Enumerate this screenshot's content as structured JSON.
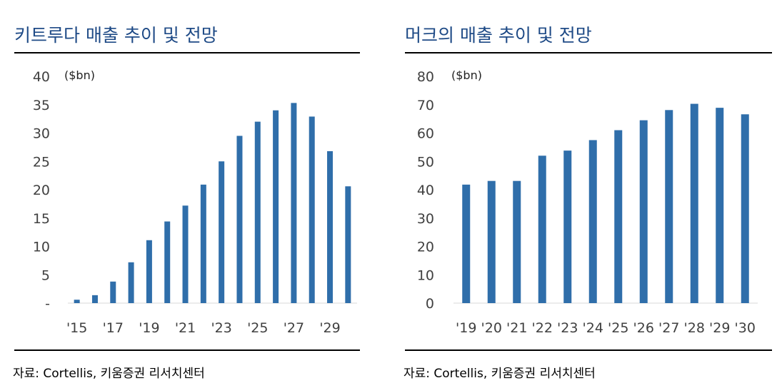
{
  "colors": {
    "bar": "#2f6eaa",
    "title": "#1e4a86",
    "axis_text": "#404040",
    "rule": "#000000"
  },
  "chart_data": [
    {
      "type": "bar",
      "title": "키트루다 매출 추이 및 전망",
      "unit_label": "($bn)",
      "ylim": [
        0,
        40
      ],
      "y_ticks": [
        "-",
        "5",
        "10",
        "15",
        "20",
        "25",
        "30",
        "35",
        "40"
      ],
      "categories": [
        "2015",
        "2016",
        "2017",
        "2018",
        "2019",
        "2020",
        "2021",
        "2022",
        "2023",
        "2024",
        "2025",
        "2026",
        "2027",
        "2028",
        "2029",
        "2030"
      ],
      "x_tick_labels": [
        "'15",
        "",
        "'17",
        "",
        "'19",
        "",
        "'21",
        "",
        "'23",
        "",
        "'25",
        "",
        "'27",
        "",
        "'29",
        ""
      ],
      "values": [
        0.6,
        1.4,
        3.8,
        7.2,
        11.1,
        14.4,
        17.2,
        20.9,
        25.0,
        29.5,
        32.0,
        34.0,
        35.3,
        32.9,
        26.8,
        20.6
      ],
      "grid": false,
      "source": "자료: Cortellis, 키움증권 리서치센터"
    },
    {
      "type": "bar",
      "title": "머크의 매출 추이 및 전망",
      "unit_label": "($bn)",
      "ylim": [
        0,
        80
      ],
      "y_ticks": [
        "0",
        "10",
        "20",
        "30",
        "40",
        "50",
        "60",
        "70",
        "80"
      ],
      "categories": [
        "2019",
        "2020",
        "2021",
        "2022",
        "2023",
        "2024",
        "2025",
        "2026",
        "2027",
        "2028",
        "2029",
        "2030"
      ],
      "x_tick_labels": [
        "'19",
        "'20",
        "'21",
        "'22",
        "'23",
        "'24",
        "'25",
        "'26",
        "'27",
        "'28",
        "'29",
        "'30"
      ],
      "values": [
        41.8,
        43.1,
        43.1,
        52.0,
        53.8,
        57.5,
        61.0,
        64.5,
        68.1,
        70.3,
        68.9,
        66.6
      ],
      "grid": false,
      "source": "자료: Cortellis, 키움증권 리서치센터"
    }
  ]
}
